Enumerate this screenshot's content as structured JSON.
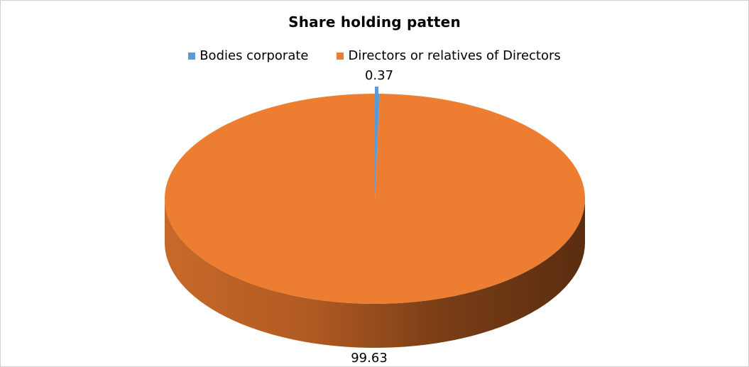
{
  "chart_data": {
    "type": "pie",
    "title": "Share holding  patten",
    "categories": [
      "Bodies corporate",
      "Directors or relatives of Directors"
    ],
    "values": [
      0.37,
      99.63
    ],
    "data_labels": [
      "0.37",
      "99.63"
    ],
    "colors": [
      "#5b9bd5",
      "#ed7d31"
    ],
    "legend_position": "top",
    "style": "3d"
  }
}
